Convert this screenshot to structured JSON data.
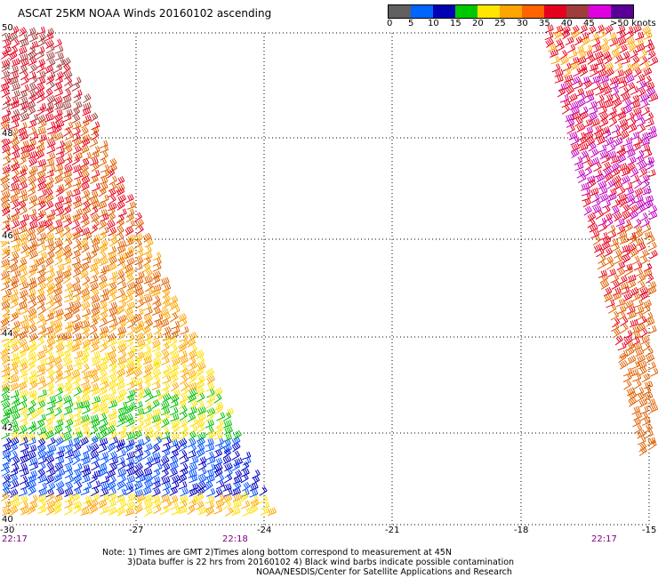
{
  "title": "ASCAT 25KM NOAA Winds 20160102 ascending",
  "legend": {
    "labels": [
      "0",
      "5",
      "10",
      "15",
      "20",
      "25",
      "30",
      "35",
      "40",
      "45",
      ">50 knots"
    ],
    "colors": [
      "#404040",
      "#00bfff",
      "#0050ff",
      "#0000c0",
      "#00c000",
      "#ffe000",
      "#ffa500",
      "#e06000",
      "#e00000",
      "#c03030",
      "#c000c0",
      "#5a0080"
    ]
  },
  "map": {
    "lat_labels": [
      "50",
      "48",
      "46",
      "44",
      "42",
      "40"
    ],
    "lon_labels": [
      "-30",
      "-27",
      "-24",
      "-21",
      "-18",
      "-15"
    ],
    "time_labels": [
      "22:17",
      "22:18",
      "22:17"
    ]
  },
  "notes": {
    "line1": "Note: 1) Times are GMT 2)Times along bottom correspond to measurement at 45N",
    "line2": "3)Data buffer is 22 hrs from 20160102 4) Black wind barbs indicate possible contamination",
    "line3": "NOAA/NESDIS/Center for Satellite Applications and Research"
  }
}
